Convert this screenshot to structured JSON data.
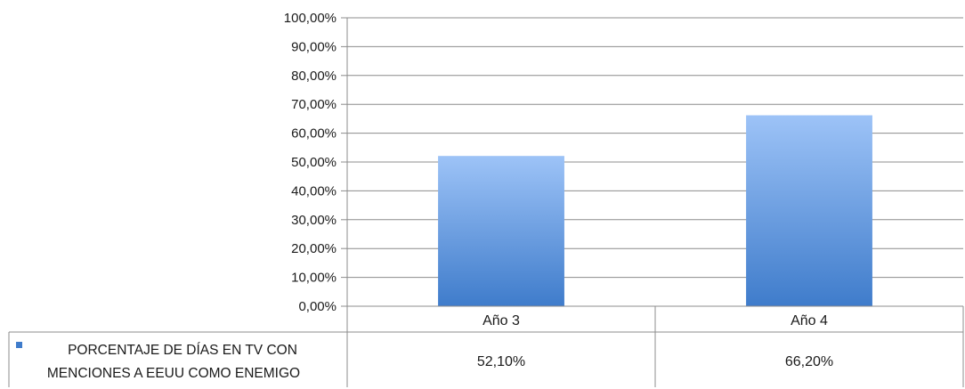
{
  "chart_data": {
    "type": "bar",
    "categories": [
      "Año 3",
      "Año 4"
    ],
    "series": [
      {
        "name": "PORCENTAJE DE DÍAS EN TV CON MENCIONES A EEUU COMO ENEMIGO",
        "name_lines": [
          "PORCENTAJE DE DÍAS EN TV CON",
          "MENCIONES A EEUU COMO ENEMIGO"
        ],
        "values": [
          52.1,
          66.2
        ],
        "value_labels": [
          "52,10%",
          "66,20%"
        ],
        "color_top": "#9dc3f7",
        "color_bottom": "#3f7ccb"
      }
    ],
    "ylim": [
      0,
      100
    ],
    "yticks": [
      0,
      10,
      20,
      30,
      40,
      50,
      60,
      70,
      80,
      90,
      100
    ],
    "ytick_labels": [
      "0,00%",
      "10,00%",
      "20,00%",
      "30,00%",
      "40,00%",
      "50,00%",
      "60,00%",
      "70,00%",
      "80,00%",
      "90,00%",
      "100,00%"
    ],
    "grid": true,
    "legend": "data-table-left",
    "title": "",
    "xlabel": "",
    "ylabel": ""
  }
}
